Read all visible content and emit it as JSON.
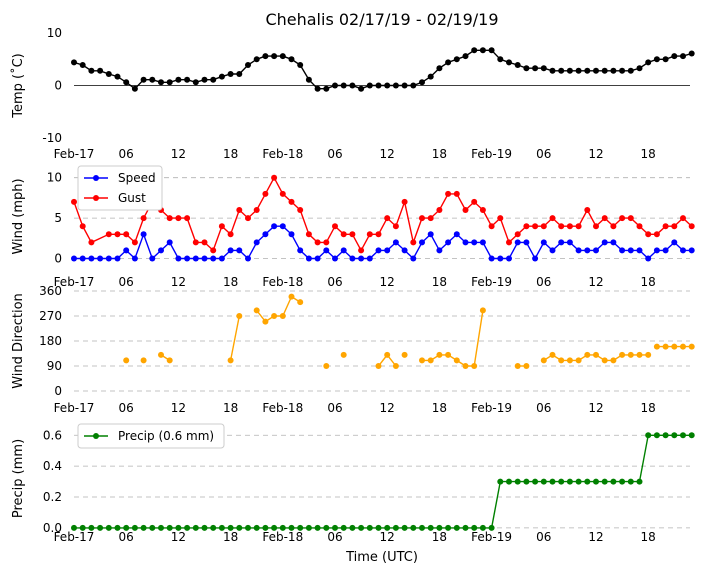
{
  "title": "Chehalis 02/17/19 - 02/19/19",
  "xlabel": "Time (UTC)",
  "x_ticks": [
    {
      "h": 0,
      "label": "Feb-17"
    },
    {
      "h": 6,
      "label": "06"
    },
    {
      "h": 12,
      "label": "12"
    },
    {
      "h": 18,
      "label": "18"
    },
    {
      "h": 24,
      "label": "Feb-18"
    },
    {
      "h": 30,
      "label": "06"
    },
    {
      "h": 36,
      "label": "12"
    },
    {
      "h": 42,
      "label": "18"
    },
    {
      "h": 48,
      "label": "Feb-19"
    },
    {
      "h": 54,
      "label": "06"
    },
    {
      "h": 60,
      "label": "12"
    },
    {
      "h": 66,
      "label": "18"
    }
  ],
  "colors": {
    "temp": "#000000",
    "speed": "#0000ff",
    "gust": "#ff0000",
    "direction": "#ffa500",
    "precip": "#008000",
    "grid": "#b0b0b0"
  },
  "chart_data": [
    {
      "id": "temp",
      "type": "line",
      "ylabel": "Temp (˚C)",
      "ylim": [
        -10,
        10
      ],
      "yticks": [
        -10,
        0,
        10
      ],
      "zero_line": true,
      "grid": false,
      "x_unit": "hours since Feb-17 00:00 UTC",
      "series": [
        {
          "key": "temp",
          "x": [
            0,
            1,
            2,
            3,
            4,
            5,
            6,
            7,
            8,
            9,
            10,
            11,
            12,
            13,
            14,
            15,
            16,
            17,
            18,
            19,
            20,
            21,
            22,
            23,
            24,
            25,
            26,
            27,
            28,
            29,
            30,
            31,
            32,
            33,
            34,
            35,
            36,
            37,
            38,
            39,
            40,
            41,
            42,
            43,
            44,
            45,
            46,
            47,
            48,
            49,
            50,
            51,
            52,
            53,
            54,
            55,
            56,
            57,
            58,
            59,
            60,
            61,
            62,
            63,
            64,
            65,
            66,
            67,
            68,
            69,
            70,
            71
          ],
          "values": [
            4.4,
            3.9,
            2.8,
            2.8,
            2.2,
            1.7,
            0.6,
            -0.6,
            1.1,
            1.1,
            0.6,
            0.6,
            1.1,
            1.1,
            0.6,
            1.1,
            1.1,
            1.7,
            2.2,
            2.2,
            3.9,
            5.0,
            5.6,
            5.6,
            5.6,
            5.0,
            3.9,
            1.1,
            -0.6,
            -0.6,
            0.0,
            0.0,
            0.0,
            -0.6,
            0.0,
            0.0,
            0.0,
            0.0,
            0.0,
            0.0,
            0.6,
            1.7,
            3.3,
            4.4,
            5.0,
            5.6,
            6.7,
            6.7,
            6.7,
            5.0,
            4.4,
            3.9,
            3.3,
            3.3,
            3.3,
            2.8,
            2.8,
            2.8,
            2.8,
            2.8,
            2.8,
            2.8,
            2.8,
            2.8,
            2.8,
            3.3,
            4.4,
            5.0,
            5.0,
            5.6,
            5.6,
            6.1
          ]
        }
      ]
    },
    {
      "id": "wind",
      "type": "line",
      "ylabel": "Wind (mph)",
      "ylim": [
        -0.8,
        11.2
      ],
      "yticks": [
        0,
        5,
        10
      ],
      "grid": true,
      "legend_position": "top-left",
      "series": [
        {
          "key": "speed",
          "name": "Speed",
          "x": [
            0,
            1,
            2,
            3,
            4,
            5,
            6,
            7,
            8,
            9,
            10,
            11,
            12,
            13,
            14,
            15,
            16,
            17,
            18,
            19,
            20,
            21,
            22,
            23,
            24,
            25,
            26,
            27,
            28,
            29,
            30,
            31,
            32,
            33,
            34,
            35,
            36,
            37,
            38,
            39,
            40,
            41,
            42,
            43,
            44,
            45,
            46,
            47,
            48,
            49,
            50,
            51,
            52,
            53,
            54,
            55,
            56,
            57,
            58,
            59,
            60,
            61,
            62,
            63,
            64,
            65,
            66,
            67,
            68,
            69,
            70,
            71
          ],
          "values": [
            0,
            0,
            0,
            0,
            0,
            0,
            1,
            0,
            3,
            0,
            1,
            2,
            0,
            0,
            0,
            0,
            0,
            0,
            1,
            1,
            0,
            2,
            3,
            4,
            4,
            3,
            1,
            0,
            0,
            1,
            0,
            1,
            0,
            0,
            0,
            1,
            1,
            2,
            1,
            0,
            2,
            3,
            1,
            2,
            3,
            2,
            2,
            2,
            0,
            0,
            0,
            2,
            2,
            0,
            2,
            1,
            2,
            2,
            1,
            1,
            1,
            2,
            2,
            1,
            1,
            1,
            0,
            1,
            1,
            2,
            1,
            1
          ]
        },
        {
          "key": "gust",
          "name": "Gust",
          "x": [
            0,
            1,
            2,
            4,
            5,
            6,
            7,
            8,
            9,
            10,
            11,
            12,
            13,
            14,
            15,
            16,
            17,
            18,
            19,
            20,
            21,
            22,
            23,
            24,
            25,
            26,
            27,
            28,
            29,
            30,
            31,
            32,
            33,
            34,
            35,
            36,
            37,
            38,
            39,
            40,
            41,
            42,
            43,
            44,
            45,
            46,
            47,
            48,
            49,
            50,
            51,
            52,
            53,
            54,
            55,
            56,
            57,
            58,
            59,
            60,
            61,
            62,
            63,
            64,
            65,
            66,
            67,
            68,
            69,
            70,
            71
          ],
          "values": [
            7,
            4,
            2,
            3,
            3,
            3,
            2,
            5,
            7,
            6,
            5,
            5,
            5,
            2,
            2,
            1,
            4,
            3,
            6,
            5,
            6,
            8,
            10,
            8,
            7,
            6,
            3,
            2,
            2,
            4,
            3,
            3,
            1,
            3,
            3,
            5,
            4,
            7,
            2,
            5,
            5,
            6,
            8,
            8,
            6,
            7,
            6,
            4,
            5,
            2,
            3,
            4,
            4,
            4,
            5,
            4,
            4,
            4,
            6,
            4,
            5,
            4,
            5,
            5,
            4,
            3,
            3,
            4,
            4,
            5,
            4
          ]
        }
      ]
    },
    {
      "id": "direction",
      "type": "scatter",
      "ylabel": "Wind Direction",
      "ylim": [
        0,
        360
      ],
      "yticks": [
        0,
        90,
        180,
        270,
        360
      ],
      "grid": true,
      "series": [
        {
          "key": "direction",
          "segments": [
            {
              "x": [
                6
              ],
              "values": [
                110
              ]
            },
            {
              "x": [
                8
              ],
              "values": [
                110
              ]
            },
            {
              "x": [
                10,
                11
              ],
              "values": [
                130,
                110
              ]
            },
            {
              "x": [
                18,
                19
              ],
              "values": [
                110,
                270
              ]
            },
            {
              "x": [
                21,
                22,
                23,
                24,
                25,
                26
              ],
              "values": [
                290,
                250,
                270,
                270,
                340,
                320
              ]
            },
            {
              "x": [
                29
              ],
              "values": [
                90
              ]
            },
            {
              "x": [
                31
              ],
              "values": [
                130
              ]
            },
            {
              "x": [
                35,
                36,
                37
              ],
              "values": [
                90,
                130,
                90
              ]
            },
            {
              "x": [
                38
              ],
              "values": [
                130
              ]
            },
            {
              "x": [
                40,
                41,
                42,
                43,
                44,
                45,
                46,
                47
              ],
              "values": [
                110,
                110,
                130,
                130,
                110,
                90,
                90,
                290
              ]
            },
            {
              "x": [
                51,
                52
              ],
              "values": [
                90,
                90
              ]
            },
            {
              "x": [
                54,
                55,
                56,
                57,
                58,
                59,
                60,
                61,
                62,
                63,
                64,
                65,
                66
              ],
              "values": [
                110,
                130,
                110,
                110,
                110,
                130,
                130,
                110,
                110,
                130,
                130,
                130,
                130
              ]
            },
            {
              "x": [
                67,
                68,
                69,
                70,
                71
              ],
              "values": [
                160,
                160,
                160,
                160,
                160
              ]
            }
          ]
        }
      ]
    },
    {
      "id": "precip",
      "type": "line",
      "ylabel": "Precip (mm)",
      "ylim": [
        -0.02,
        0.66
      ],
      "yticks": [
        0.0,
        0.2,
        0.4,
        0.6
      ],
      "grid": true,
      "legend_position": "top-left",
      "series": [
        {
          "key": "precip",
          "name": "Precip (0.6 mm)",
          "x": [
            0,
            1,
            2,
            3,
            4,
            5,
            6,
            7,
            8,
            9,
            10,
            11,
            12,
            13,
            14,
            15,
            16,
            17,
            18,
            19,
            20,
            21,
            22,
            23,
            24,
            25,
            26,
            27,
            28,
            29,
            30,
            31,
            32,
            33,
            34,
            35,
            36,
            37,
            38,
            39,
            40,
            41,
            42,
            43,
            44,
            45,
            46,
            47,
            48,
            49,
            50,
            51,
            52,
            53,
            54,
            55,
            56,
            57,
            58,
            59,
            60,
            61,
            62,
            63,
            64,
            65,
            66,
            67,
            68,
            69,
            70,
            71
          ],
          "values": [
            0,
            0,
            0,
            0,
            0,
            0,
            0,
            0,
            0,
            0,
            0,
            0,
            0,
            0,
            0,
            0,
            0,
            0,
            0,
            0,
            0,
            0,
            0,
            0,
            0,
            0,
            0,
            0,
            0,
            0,
            0,
            0,
            0,
            0,
            0,
            0,
            0,
            0,
            0,
            0,
            0,
            0,
            0,
            0,
            0,
            0,
            0,
            0,
            0,
            0.3,
            0.3,
            0.3,
            0.3,
            0.3,
            0.3,
            0.3,
            0.3,
            0.3,
            0.3,
            0.3,
            0.3,
            0.3,
            0.3,
            0.3,
            0.3,
            0.3,
            0.6,
            0.6,
            0.6,
            0.6,
            0.6,
            0.6
          ]
        }
      ]
    }
  ]
}
